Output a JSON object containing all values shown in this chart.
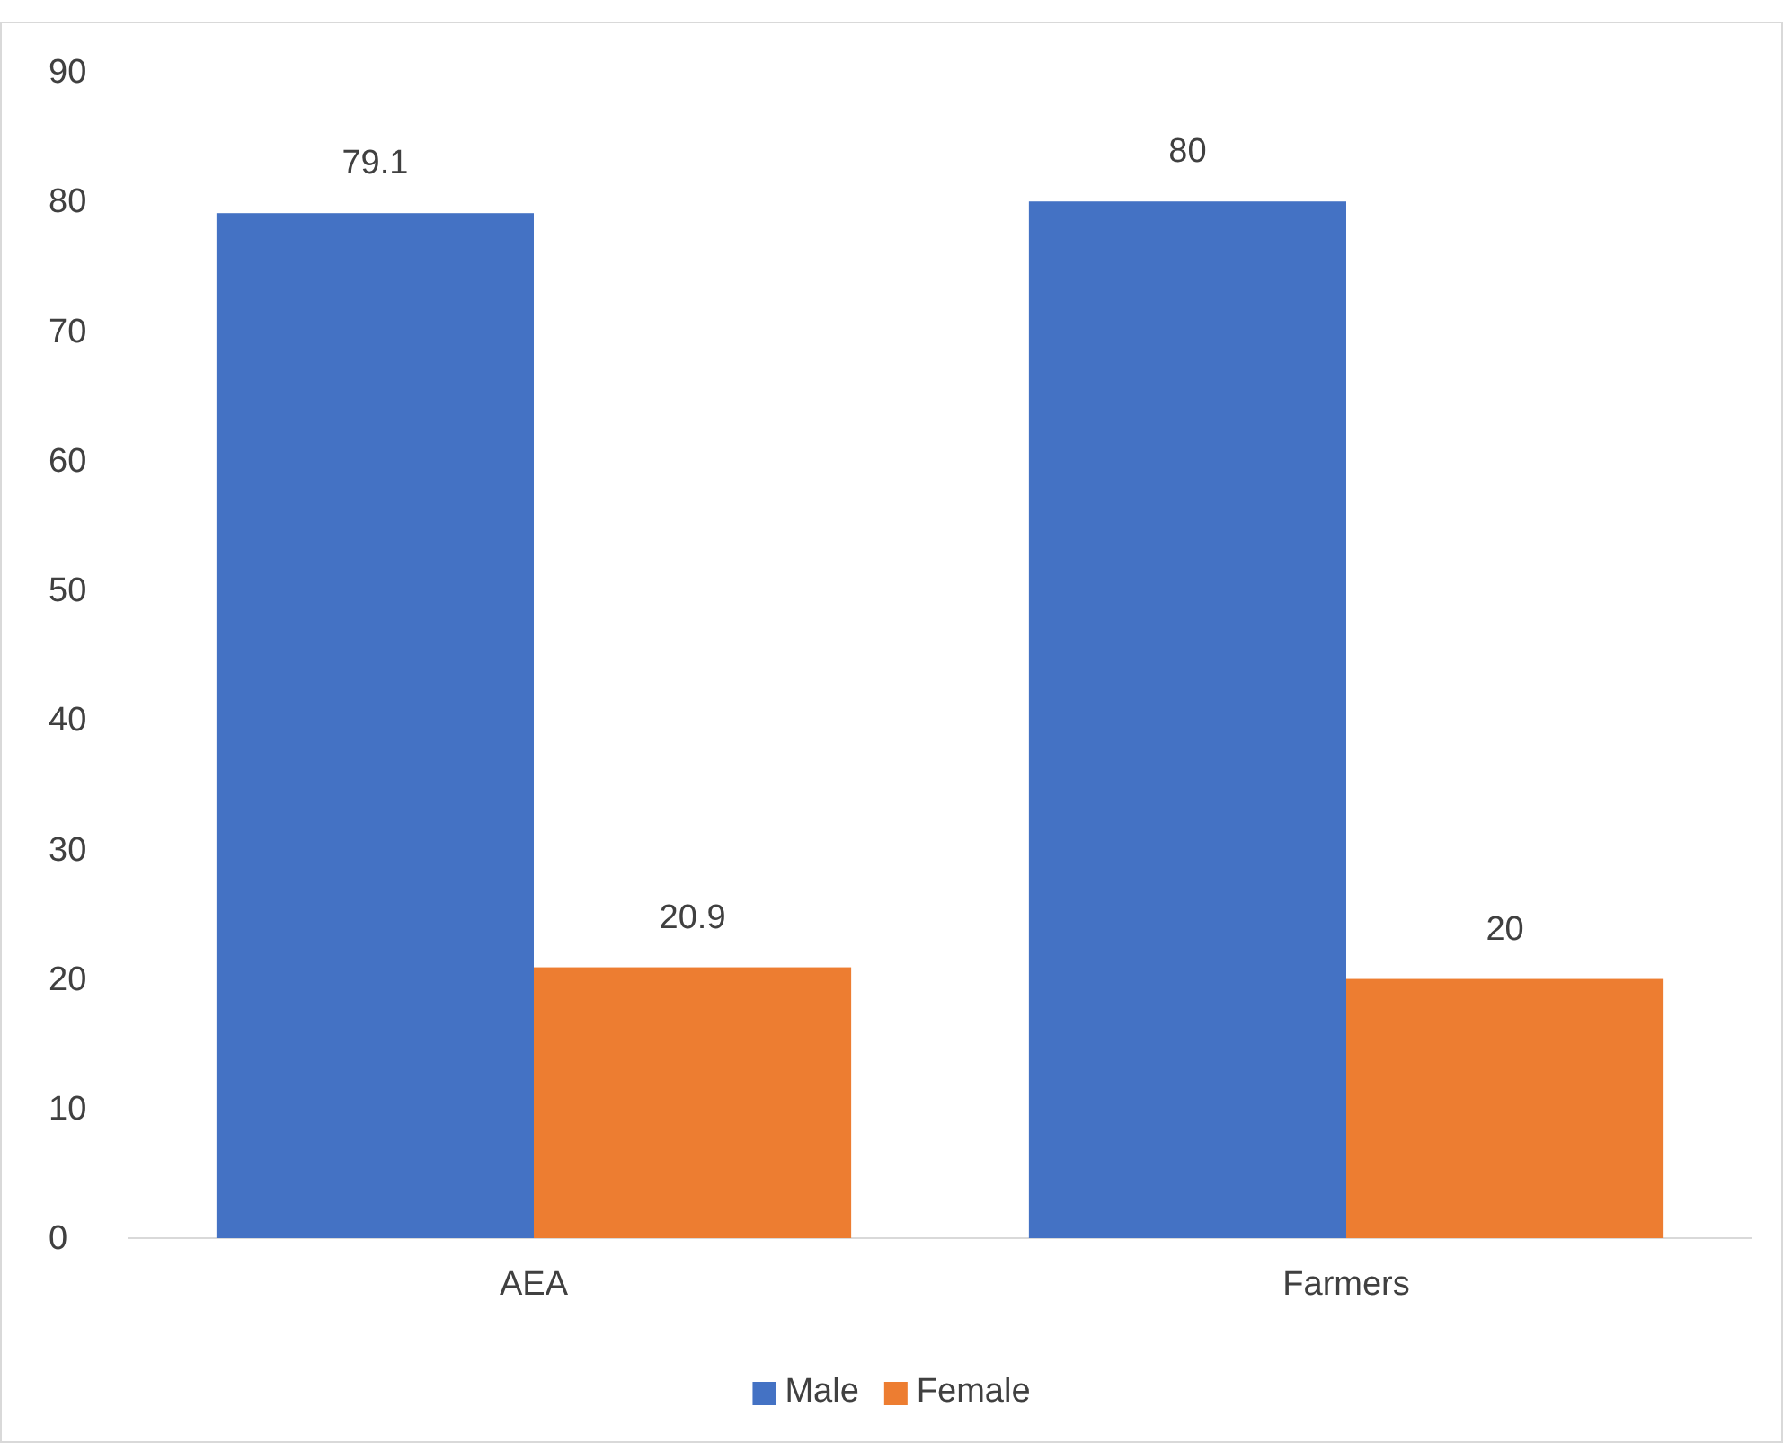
{
  "chart_data": {
    "type": "bar",
    "categories": [
      "AEA",
      "Farmers"
    ],
    "series": [
      {
        "name": "Male",
        "color": "#4472c4",
        "values": [
          79.1,
          80
        ]
      },
      {
        "name": "Female",
        "color": "#ed7d31",
        "values": [
          20.9,
          20
        ]
      }
    ],
    "ylim": [
      0,
      90
    ],
    "yticks": [
      0,
      10,
      20,
      30,
      40,
      50,
      60,
      70,
      80,
      90
    ],
    "data_labels": true,
    "legend": "bottom",
    "grid": false
  }
}
